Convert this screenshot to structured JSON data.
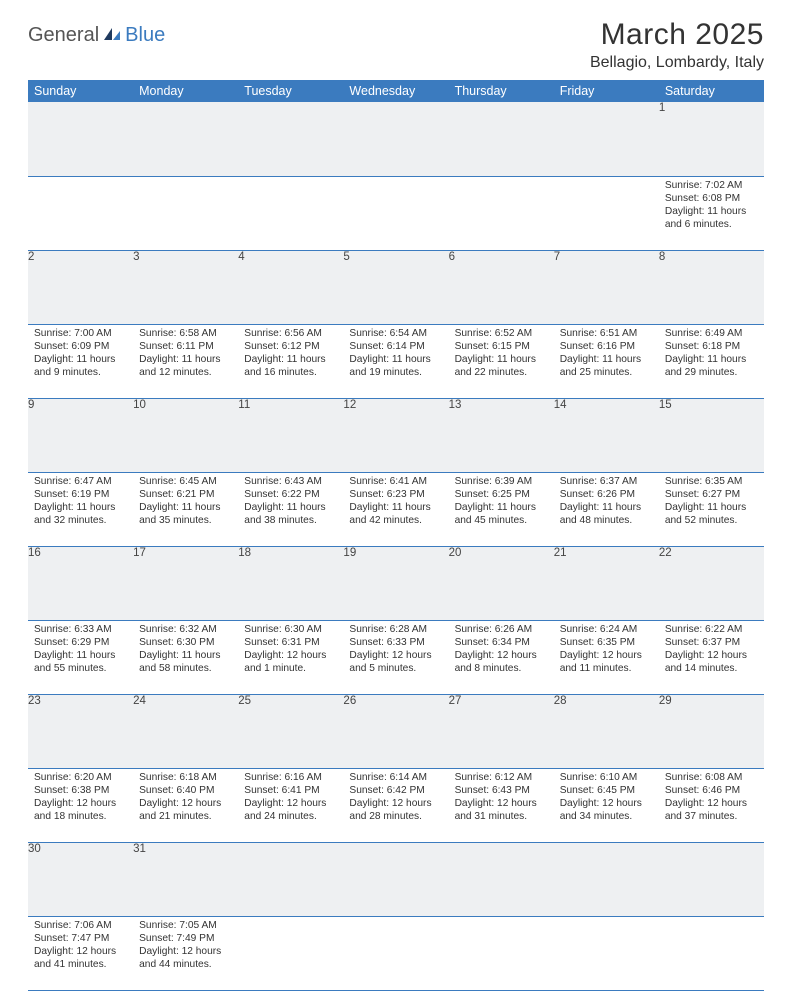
{
  "logo": {
    "part1": "General",
    "part2": "Blue"
  },
  "title": "March 2025",
  "location": "Bellagio, Lombardy, Italy",
  "calendar": {
    "type": "table",
    "header_bg": "#3b7bbf",
    "header_fg": "#ffffff",
    "daynum_bg": "#eef0f2",
    "grid_color": "#3b7bbf",
    "font_family": "Arial",
    "daynum_fontsize": 11.5,
    "cell_fontsize": 10.2,
    "days": [
      "Sunday",
      "Monday",
      "Tuesday",
      "Wednesday",
      "Thursday",
      "Friday",
      "Saturday"
    ],
    "weeks": [
      [
        null,
        null,
        null,
        null,
        null,
        null,
        {
          "n": "1",
          "sunrise": "Sunrise: 7:02 AM",
          "sunset": "Sunset: 6:08 PM",
          "daylight": "Daylight: 11 hours and 6 minutes."
        }
      ],
      [
        {
          "n": "2",
          "sunrise": "Sunrise: 7:00 AM",
          "sunset": "Sunset: 6:09 PM",
          "daylight": "Daylight: 11 hours and 9 minutes."
        },
        {
          "n": "3",
          "sunrise": "Sunrise: 6:58 AM",
          "sunset": "Sunset: 6:11 PM",
          "daylight": "Daylight: 11 hours and 12 minutes."
        },
        {
          "n": "4",
          "sunrise": "Sunrise: 6:56 AM",
          "sunset": "Sunset: 6:12 PM",
          "daylight": "Daylight: 11 hours and 16 minutes."
        },
        {
          "n": "5",
          "sunrise": "Sunrise: 6:54 AM",
          "sunset": "Sunset: 6:14 PM",
          "daylight": "Daylight: 11 hours and 19 minutes."
        },
        {
          "n": "6",
          "sunrise": "Sunrise: 6:52 AM",
          "sunset": "Sunset: 6:15 PM",
          "daylight": "Daylight: 11 hours and 22 minutes."
        },
        {
          "n": "7",
          "sunrise": "Sunrise: 6:51 AM",
          "sunset": "Sunset: 6:16 PM",
          "daylight": "Daylight: 11 hours and 25 minutes."
        },
        {
          "n": "8",
          "sunrise": "Sunrise: 6:49 AM",
          "sunset": "Sunset: 6:18 PM",
          "daylight": "Daylight: 11 hours and 29 minutes."
        }
      ],
      [
        {
          "n": "9",
          "sunrise": "Sunrise: 6:47 AM",
          "sunset": "Sunset: 6:19 PM",
          "daylight": "Daylight: 11 hours and 32 minutes."
        },
        {
          "n": "10",
          "sunrise": "Sunrise: 6:45 AM",
          "sunset": "Sunset: 6:21 PM",
          "daylight": "Daylight: 11 hours and 35 minutes."
        },
        {
          "n": "11",
          "sunrise": "Sunrise: 6:43 AM",
          "sunset": "Sunset: 6:22 PM",
          "daylight": "Daylight: 11 hours and 38 minutes."
        },
        {
          "n": "12",
          "sunrise": "Sunrise: 6:41 AM",
          "sunset": "Sunset: 6:23 PM",
          "daylight": "Daylight: 11 hours and 42 minutes."
        },
        {
          "n": "13",
          "sunrise": "Sunrise: 6:39 AM",
          "sunset": "Sunset: 6:25 PM",
          "daylight": "Daylight: 11 hours and 45 minutes."
        },
        {
          "n": "14",
          "sunrise": "Sunrise: 6:37 AM",
          "sunset": "Sunset: 6:26 PM",
          "daylight": "Daylight: 11 hours and 48 minutes."
        },
        {
          "n": "15",
          "sunrise": "Sunrise: 6:35 AM",
          "sunset": "Sunset: 6:27 PM",
          "daylight": "Daylight: 11 hours and 52 minutes."
        }
      ],
      [
        {
          "n": "16",
          "sunrise": "Sunrise: 6:33 AM",
          "sunset": "Sunset: 6:29 PM",
          "daylight": "Daylight: 11 hours and 55 minutes."
        },
        {
          "n": "17",
          "sunrise": "Sunrise: 6:32 AM",
          "sunset": "Sunset: 6:30 PM",
          "daylight": "Daylight: 11 hours and 58 minutes."
        },
        {
          "n": "18",
          "sunrise": "Sunrise: 6:30 AM",
          "sunset": "Sunset: 6:31 PM",
          "daylight": "Daylight: 12 hours and 1 minute."
        },
        {
          "n": "19",
          "sunrise": "Sunrise: 6:28 AM",
          "sunset": "Sunset: 6:33 PM",
          "daylight": "Daylight: 12 hours and 5 minutes."
        },
        {
          "n": "20",
          "sunrise": "Sunrise: 6:26 AM",
          "sunset": "Sunset: 6:34 PM",
          "daylight": "Daylight: 12 hours and 8 minutes."
        },
        {
          "n": "21",
          "sunrise": "Sunrise: 6:24 AM",
          "sunset": "Sunset: 6:35 PM",
          "daylight": "Daylight: 12 hours and 11 minutes."
        },
        {
          "n": "22",
          "sunrise": "Sunrise: 6:22 AM",
          "sunset": "Sunset: 6:37 PM",
          "daylight": "Daylight: 12 hours and 14 minutes."
        }
      ],
      [
        {
          "n": "23",
          "sunrise": "Sunrise: 6:20 AM",
          "sunset": "Sunset: 6:38 PM",
          "daylight": "Daylight: 12 hours and 18 minutes."
        },
        {
          "n": "24",
          "sunrise": "Sunrise: 6:18 AM",
          "sunset": "Sunset: 6:40 PM",
          "daylight": "Daylight: 12 hours and 21 minutes."
        },
        {
          "n": "25",
          "sunrise": "Sunrise: 6:16 AM",
          "sunset": "Sunset: 6:41 PM",
          "daylight": "Daylight: 12 hours and 24 minutes."
        },
        {
          "n": "26",
          "sunrise": "Sunrise: 6:14 AM",
          "sunset": "Sunset: 6:42 PM",
          "daylight": "Daylight: 12 hours and 28 minutes."
        },
        {
          "n": "27",
          "sunrise": "Sunrise: 6:12 AM",
          "sunset": "Sunset: 6:43 PM",
          "daylight": "Daylight: 12 hours and 31 minutes."
        },
        {
          "n": "28",
          "sunrise": "Sunrise: 6:10 AM",
          "sunset": "Sunset: 6:45 PM",
          "daylight": "Daylight: 12 hours and 34 minutes."
        },
        {
          "n": "29",
          "sunrise": "Sunrise: 6:08 AM",
          "sunset": "Sunset: 6:46 PM",
          "daylight": "Daylight: 12 hours and 37 minutes."
        }
      ],
      [
        {
          "n": "30",
          "sunrise": "Sunrise: 7:06 AM",
          "sunset": "Sunset: 7:47 PM",
          "daylight": "Daylight: 12 hours and 41 minutes."
        },
        {
          "n": "31",
          "sunrise": "Sunrise: 7:05 AM",
          "sunset": "Sunset: 7:49 PM",
          "daylight": "Daylight: 12 hours and 44 minutes."
        },
        null,
        null,
        null,
        null,
        null
      ]
    ]
  }
}
